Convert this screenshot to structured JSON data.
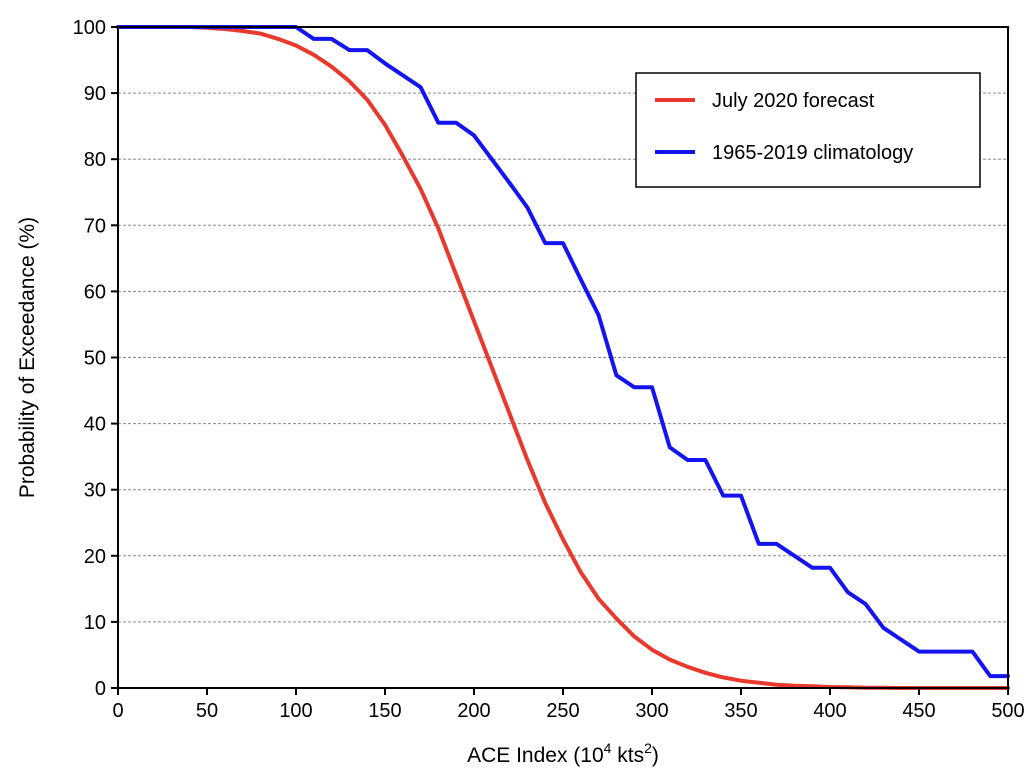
{
  "chart_data": {
    "type": "line",
    "title": "",
    "xlabel": {
      "main": "ACE Index (10",
      "sup1": "4",
      "mid": " kts",
      "sup2": "2",
      "end": ")"
    },
    "ylabel": "Probability of Exceedance (%)",
    "xlim": [
      0,
      500
    ],
    "ylim": [
      0,
      100
    ],
    "xticks": [
      0,
      50,
      100,
      150,
      200,
      250,
      300,
      350,
      400,
      450,
      500
    ],
    "yticks": [
      0,
      10,
      20,
      30,
      40,
      50,
      60,
      70,
      80,
      90,
      100
    ],
    "grid": "horizontal-dashed",
    "legend_position": "top-right",
    "series": [
      {
        "name": "July 2020 forecast",
        "color": "#e8392c",
        "x": [
          0,
          10,
          20,
          30,
          40,
          50,
          60,
          70,
          80,
          90,
          100,
          110,
          120,
          130,
          140,
          150,
          160,
          170,
          180,
          190,
          200,
          210,
          220,
          230,
          240,
          250,
          260,
          270,
          280,
          290,
          300,
          310,
          320,
          330,
          340,
          350,
          360,
          370,
          380,
          390,
          400,
          410,
          420,
          430,
          440,
          450,
          460,
          470,
          480,
          490,
          500
        ],
        "y": [
          100,
          100,
          100,
          100,
          100,
          99.9,
          99.7,
          99.4,
          99,
          98.2,
          97.2,
          95.8,
          94,
          91.8,
          89,
          85.2,
          80.5,
          75.5,
          69.5,
          62.5,
          55.5,
          48.5,
          41.5,
          34.5,
          28,
          22.5,
          17.5,
          13.5,
          10.5,
          7.8,
          5.8,
          4.3,
          3.2,
          2.3,
          1.6,
          1.1,
          0.8,
          0.5,
          0.35,
          0.25,
          0.15,
          0.1,
          0.05,
          0.03,
          0,
          0,
          0,
          0,
          0,
          0,
          0
        ]
      },
      {
        "name": "1965-2019 climatology",
        "color": "#1414f0",
        "x": [
          0,
          100,
          110,
          120,
          130,
          140,
          150,
          160,
          170,
          180,
          190,
          200,
          210,
          220,
          230,
          240,
          250,
          260,
          270,
          280,
          290,
          300,
          310,
          320,
          330,
          340,
          350,
          360,
          370,
          380,
          390,
          400,
          410,
          420,
          430,
          440,
          450,
          460,
          470,
          480,
          490,
          500
        ],
        "y": [
          100,
          100,
          98.2,
          98.2,
          96.5,
          96.5,
          94.5,
          92.7,
          90.9,
          85.5,
          85.5,
          83.6,
          80,
          76.4,
          72.7,
          67.3,
          67.3,
          61.8,
          56.4,
          47.3,
          45.5,
          45.5,
          36.4,
          34.5,
          34.5,
          29.1,
          29.1,
          21.8,
          21.8,
          20,
          18.2,
          18.2,
          14.5,
          12.7,
          9.1,
          7.3,
          5.5,
          5.5,
          5.5,
          5.5,
          1.8,
          1.8
        ]
      }
    ]
  }
}
